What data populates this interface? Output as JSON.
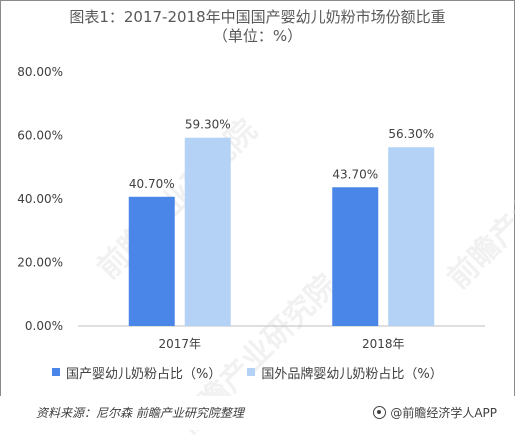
{
  "title": "图表1：2017-2018年中国国产婴幼儿奶粉市场份额比重",
  "subtitle": "（单位：%）",
  "chart_data": {
    "type": "bar",
    "categories": [
      "2017年",
      "2018年"
    ],
    "series": [
      {
        "name": "国产婴幼儿奶粉占比（%）",
        "values": [
          40.7,
          43.7
        ],
        "labels": [
          "40.70%",
          "43.70%"
        ],
        "color": "#4a86e8"
      },
      {
        "name": "国外品牌婴幼儿奶粉占比（%）",
        "values": [
          59.3,
          56.3
        ],
        "labels": [
          "59.30%",
          "56.30%"
        ],
        "color": "#b4d2f5"
      }
    ],
    "ylim": [
      0,
      80
    ],
    "yticks": [
      0,
      20,
      40,
      60,
      80
    ],
    "ytick_labels": [
      "0.00%",
      "20.00%",
      "40.00%",
      "60.00%",
      "80.00%"
    ],
    "grid": false,
    "legend_position": "bottom"
  },
  "source": "资料来源：尼尔森 前瞻产业研究院整理",
  "brand": "@前瞻经济学人APP",
  "watermark": "前瞻产业研究院"
}
